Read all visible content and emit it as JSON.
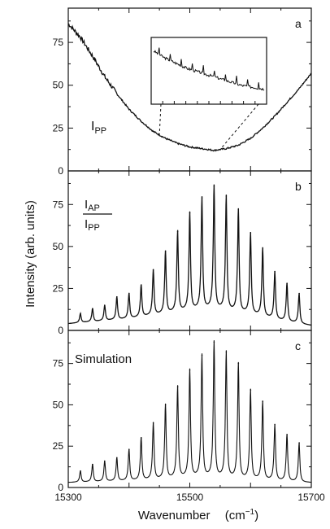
{
  "chart_data": {
    "type": "line",
    "xlabel": "Wavenumber",
    "xlabel_unit_base": "(cm",
    "xlabel_unit_exp": "−1",
    "xlabel_unit_close": ")",
    "ylabel": "Intensity (arb. units)",
    "xlim": [
      15300,
      15700
    ],
    "x_tick_labels": [
      "15300",
      "15500",
      "15700"
    ],
    "grid": false,
    "panels": [
      {
        "letter": "a",
        "label_main": "I",
        "label_sub": "PP",
        "ylim": [
          0,
          95
        ],
        "y_tick_labels": [
          "0",
          "25",
          "50",
          "75"
        ],
        "series": [
          {
            "x": [
              15300,
              15320,
              15340,
              15360,
              15380,
              15400,
              15420,
              15440,
              15460,
              15480,
              15500,
              15520,
              15540,
              15560,
              15580,
              15600,
              15620,
              15640,
              15660,
              15680,
              15700
            ],
            "values": [
              86,
              78,
              67,
              55,
              45,
              36,
              29,
              23,
              19,
              16,
              14,
              13,
              12,
              13,
              15,
              19,
              25,
              32,
              40,
              48,
              57
            ]
          }
        ],
        "inset": {
          "x_range": [
            15450,
            15550
          ],
          "values": [
            47,
            43,
            40,
            37,
            35,
            33,
            31,
            29,
            27,
            26,
            25
          ]
        }
      },
      {
        "letter": "b",
        "label_num_main": "I",
        "label_num_sub": "AP",
        "label_den_main": "I",
        "label_den_sub": "PP",
        "ylim": [
          0,
          95
        ],
        "y_tick_labels": [
          "0",
          "25",
          "50",
          "75"
        ],
        "peaks_x": [
          15320,
          15340,
          15360,
          15380,
          15400,
          15420,
          15440,
          15460,
          15480,
          15500,
          15520,
          15540,
          15560,
          15580,
          15600,
          15620,
          15640,
          15660,
          15680
        ],
        "peaks_y": [
          10,
          13,
          15,
          20,
          22,
          27,
          36,
          47,
          59,
          70,
          79,
          86,
          80,
          72,
          58,
          49,
          35,
          28,
          22
        ],
        "baseline": {
          "x": [
            15300,
            15400,
            15460,
            15500,
            15540,
            15600,
            15650,
            15700
          ],
          "values": [
            4,
            7,
            10,
            12,
            13,
            10,
            6,
            3
          ]
        }
      },
      {
        "letter": "c",
        "label_main": "Simulation",
        "ylim": [
          0,
          95
        ],
        "y_tick_labels": [
          "0",
          "25",
          "50",
          "75"
        ],
        "peaks_x": [
          15320,
          15340,
          15360,
          15380,
          15400,
          15420,
          15440,
          15460,
          15480,
          15500,
          15520,
          15540,
          15560,
          15580,
          15600,
          15620,
          15640,
          15660,
          15680
        ],
        "peaks_y": [
          10,
          14,
          16,
          18,
          23,
          30,
          39,
          50,
          61,
          71,
          80,
          88,
          82,
          75,
          59,
          52,
          38,
          32,
          27
        ],
        "baseline": {
          "x": [
            15300,
            15400,
            15460,
            15500,
            15540,
            15600,
            15650,
            15700
          ],
          "values": [
            3,
            4,
            5,
            6,
            6,
            5,
            4,
            3
          ]
        }
      }
    ]
  }
}
